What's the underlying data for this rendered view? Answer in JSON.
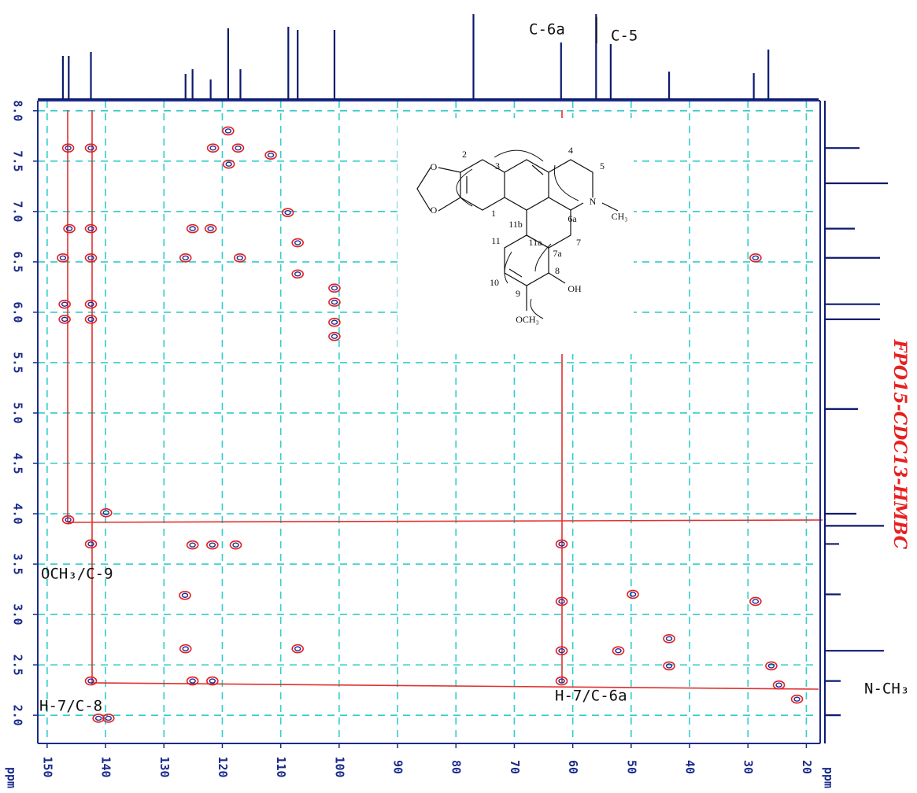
{
  "chart_data": {
    "type": "scatter",
    "title": "FPO15-CDC13-HMBC",
    "x_label": "ppm",
    "y_label": "ppm",
    "xlim": [
      151.6,
      17.9
    ],
    "ylim": [
      8.1,
      1.72
    ],
    "xticks": [
      150,
      140,
      130,
      120,
      110,
      100,
      90,
      80,
      70,
      60,
      50,
      40,
      30,
      20
    ],
    "yticks": [
      {
        "value": 8,
        "label": "8.0"
      },
      {
        "value": 7.5,
        "label": "7.5"
      },
      {
        "value": 7,
        "label": "7.0"
      },
      {
        "value": 6.5,
        "label": "6.5"
      },
      {
        "value": 6,
        "label": "6.0"
      },
      {
        "value": 5.5,
        "label": "5.5"
      },
      {
        "value": 5,
        "label": "5.0"
      },
      {
        "value": 4.5,
        "label": "4.5"
      },
      {
        "value": 4,
        "label": "4.0"
      },
      {
        "value": 3.5,
        "label": "3.5"
      },
      {
        "value": 3,
        "label": "3.0"
      },
      {
        "value": 2.5,
        "label": "2.5"
      },
      {
        "value": 2,
        "label": "2.0"
      }
    ],
    "grid": true,
    "grid_color": "#33cccc",
    "color": "#e02020",
    "x": [
      119.0,
      121.6,
      117.3,
      118.9,
      111.7,
      146.4,
      142.5,
      108.8,
      146.2,
      142.5,
      125.1,
      122.0,
      107.1,
      147.3,
      142.5,
      126.3,
      117.0,
      107.1,
      28.7,
      100.8,
      100.8,
      100.8,
      100.8,
      147.0,
      142.5,
      147.0,
      142.5,
      146.4,
      139.9,
      142.5,
      125.1,
      121.7,
      117.7,
      61.9,
      126.4,
      61.9,
      49.7,
      28.7,
      126.3,
      107.1,
      61.9,
      52.2,
      43.5,
      43.5,
      142.5,
      125.1,
      121.7,
      61.9,
      26.0,
      24.7,
      21.6,
      141.2,
      139.5
    ],
    "values": [
      7.8,
      7.63,
      7.63,
      7.47,
      7.56,
      7.63,
      7.63,
      6.99,
      6.83,
      6.83,
      6.83,
      6.83,
      6.69,
      6.54,
      6.54,
      6.54,
      6.54,
      6.38,
      6.54,
      6.24,
      6.1,
      5.9,
      5.76,
      6.08,
      6.08,
      5.93,
      5.93,
      3.94,
      4.01,
      3.7,
      3.69,
      3.69,
      3.69,
      3.7,
      3.19,
      3.13,
      3.2,
      3.13,
      2.66,
      2.66,
      2.64,
      2.64,
      2.76,
      2.49,
      2.34,
      2.34,
      2.34,
      2.34,
      2.49,
      2.3,
      2.16,
      1.97,
      1.97
    ],
    "projection_13c": {
      "color": "#0d1a6e",
      "x": [
        147.3,
        146.3,
        142.5,
        126.3,
        125.1,
        122.0,
        119.0,
        116.9,
        108.7,
        107.1,
        100.8,
        77.0,
        62.0,
        56.0,
        53.5,
        43.5,
        29.0,
        26.5
      ],
      "values": [
        55,
        55,
        60,
        32,
        38,
        25,
        90,
        38,
        92,
        88,
        88,
        108,
        72,
        108,
        70,
        35,
        33,
        63
      ]
    },
    "projection_1h": {
      "color": "#0d1a6e",
      "y": [
        7.63,
        7.28,
        6.83,
        6.54,
        6.08,
        5.93,
        5.04,
        4.0,
        3.88,
        3.7,
        3.2,
        2.64,
        2.34,
        2.0
      ],
      "values": [
        44,
        80,
        38,
        70,
        70,
        70,
        42,
        40,
        75,
        18,
        20,
        75,
        20,
        20
      ]
    },
    "annotations": [
      "C-6a",
      "C-5",
      "OCH₃/C-9",
      "H-7/C-8",
      "H-7/C-6a",
      "N-CH₃"
    ],
    "structure_labels": [
      "O",
      "O",
      "2",
      "3",
      "1",
      "4",
      "5",
      "N",
      "CH₃",
      "6a",
      "11b",
      "11a",
      "7",
      "7a",
      "11",
      "10",
      "9",
      "8",
      "OH",
      "OCH₃"
    ]
  }
}
